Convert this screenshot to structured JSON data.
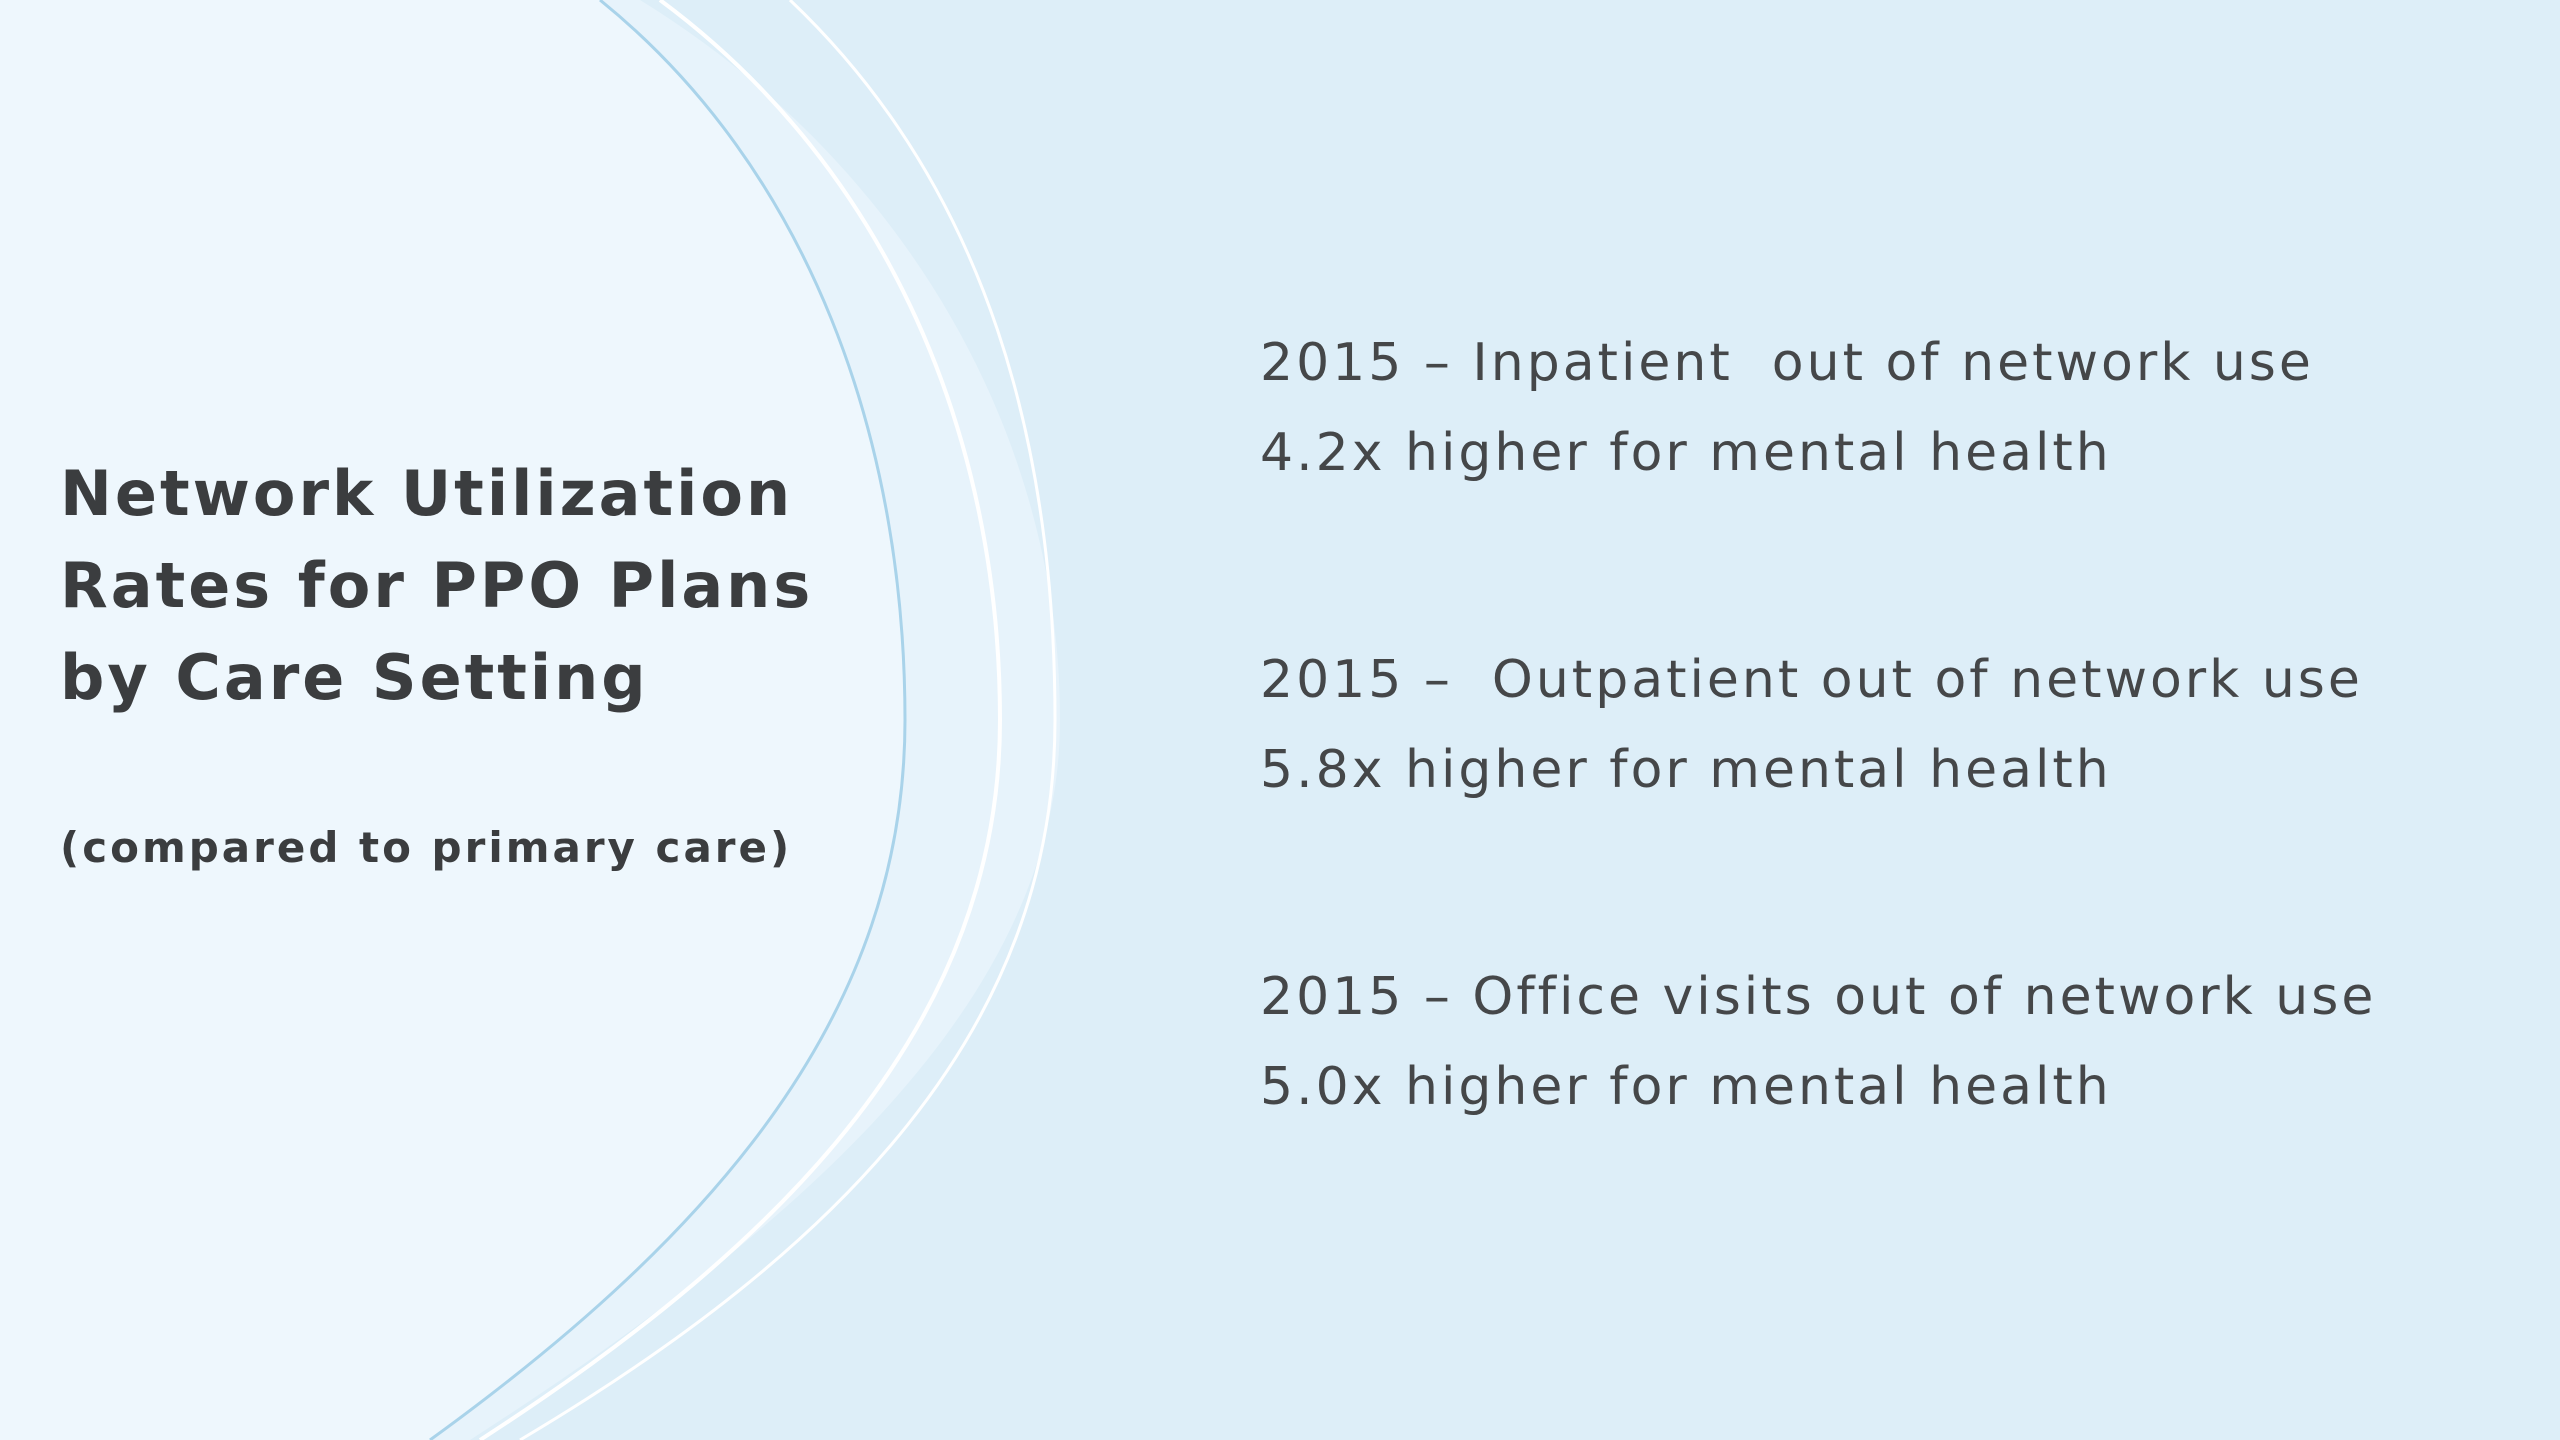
{
  "slide": {
    "title_lines": [
      "Network Utilization",
      "Rates for PPO Plans",
      "by Care Setting"
    ],
    "subtitle": "(compared to primary care)",
    "stats": [
      {
        "line1": "2015 – Inpatient  out of network use",
        "line2": "4.2x higher for mental health"
      },
      {
        "line1": "2015 –  Outpatient out of network use",
        "line2": "5.8x higher for mental health"
      },
      {
        "line1": "2015 – Office visits out of network use",
        "line2": "5.0x higher for mental health"
      }
    ]
  },
  "colors": {
    "background": "#ddeef8",
    "panel": "#eef7fd",
    "curve_line": "#a9d3ea",
    "text": "#3b3d3f"
  }
}
